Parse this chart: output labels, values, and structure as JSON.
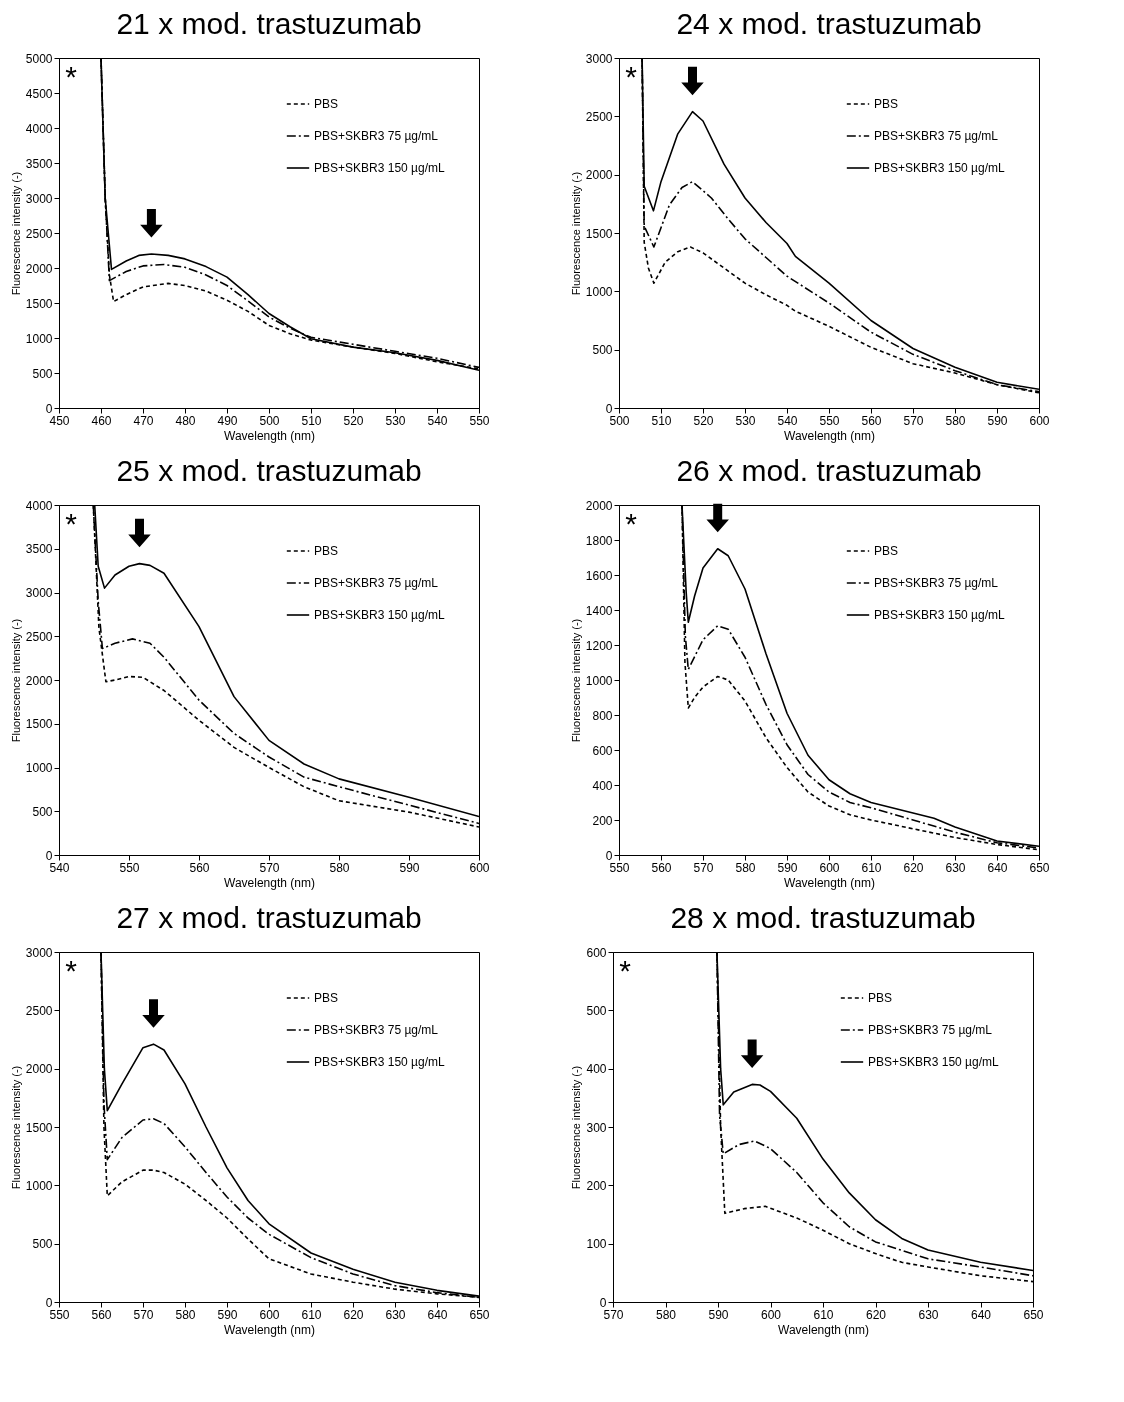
{
  "chart_data": [
    {
      "type": "line",
      "title": "21 x mod. trastuzumab",
      "xlabel": "Wavelength (nm)",
      "ylabel": "Fluorescence intensity (-)",
      "xlim": [
        450,
        550
      ],
      "xticks": [
        450,
        460,
        470,
        480,
        490,
        500,
        510,
        520,
        530,
        540,
        550
      ],
      "ylim": [
        0,
        5000
      ],
      "yticks": [
        0,
        500,
        1000,
        1500,
        2000,
        2500,
        3000,
        3500,
        4000,
        4500,
        5000
      ],
      "grid": false,
      "legend": "top right",
      "annotations": [
        "*"
      ],
      "series": [
        {
          "name": "PBS",
          "color": "#000000",
          "line_style": "dashed",
          "x": [
            460,
            461,
            462,
            463,
            466,
            470,
            476,
            480,
            485,
            490,
            495,
            500,
            505,
            510,
            520,
            530,
            540,
            550
          ],
          "values": [
            5000,
            3000,
            1900,
            1520,
            1620,
            1730,
            1780,
            1750,
            1670,
            1540,
            1380,
            1180,
            1060,
            970,
            870,
            780,
            660,
            560
          ]
        },
        {
          "name": "PBS+SKBR3 75 µg/mL",
          "color": "#000000",
          "line_style": "dashdot",
          "x": [
            460,
            461,
            462,
            466,
            470,
            475,
            480,
            485,
            490,
            495,
            500,
            505,
            510,
            520,
            530,
            540,
            550
          ],
          "values": [
            5000,
            3000,
            1820,
            1950,
            2030,
            2050,
            2010,
            1900,
            1750,
            1530,
            1300,
            1140,
            1010,
            910,
            810,
            710,
            580
          ]
        },
        {
          "name": "PBS+SKBR3 150 µg/mL",
          "color": "#000000",
          "line_style": "solid",
          "x": [
            460,
            461,
            462.5,
            466,
            469,
            472,
            476,
            480,
            485,
            490,
            495,
            500,
            505,
            510,
            520,
            530,
            540,
            550
          ],
          "values": [
            5000,
            3000,
            1980,
            2100,
            2180,
            2200,
            2180,
            2130,
            2020,
            1870,
            1620,
            1350,
            1160,
            990,
            870,
            790,
            680,
            540
          ]
        }
      ]
    },
    {
      "type": "line",
      "title": "24 x mod. trastuzumab",
      "xlabel": "Wavelength (nm)",
      "ylabel": "Fluorescence intensity (-)",
      "xlim": [
        500,
        600
      ],
      "xticks": [
        500,
        510,
        520,
        530,
        540,
        550,
        560,
        570,
        580,
        590,
        600
      ],
      "ylim": [
        0,
        3000
      ],
      "yticks": [
        0,
        500,
        1000,
        1500,
        2000,
        2500,
        3000
      ],
      "grid": false,
      "legend": "top right",
      "annotations": [
        "*"
      ],
      "series": [
        {
          "name": "PBS",
          "color": "#000000",
          "line_style": "dashed",
          "x": [
            505.5,
            506,
            507,
            508.3,
            511,
            514,
            517,
            520,
            525,
            530,
            535,
            540,
            542,
            550,
            560,
            570,
            580,
            590,
            600
          ],
          "values": [
            3000,
            1420,
            1200,
            1070,
            1250,
            1340,
            1380,
            1330,
            1200,
            1070,
            970,
            880,
            830,
            700,
            520,
            380,
            300,
            200,
            130
          ]
        },
        {
          "name": "PBS+SKBR3 75 µg/mL",
          "color": "#000000",
          "line_style": "dashdot",
          "x": [
            505.5,
            506,
            508.3,
            512,
            515,
            517.5,
            522,
            526,
            530,
            535,
            540,
            550,
            560,
            570,
            580,
            590,
            600
          ],
          "values": [
            3000,
            1560,
            1380,
            1740,
            1890,
            1940,
            1800,
            1620,
            1450,
            1290,
            1130,
            900,
            650,
            460,
            320,
            200,
            140
          ]
        },
        {
          "name": "PBS+SKBR3 150 µg/mL",
          "color": "#000000",
          "line_style": "solid",
          "x": [
            505.5,
            506,
            508.2,
            510,
            514,
            517.5,
            520,
            525,
            530,
            535,
            540,
            542,
            550,
            560,
            570,
            580,
            590,
            600
          ],
          "values": [
            3000,
            1900,
            1690,
            1940,
            2350,
            2540,
            2460,
            2090,
            1800,
            1590,
            1410,
            1300,
            1070,
            750,
            510,
            350,
            220,
            160
          ]
        }
      ]
    },
    {
      "type": "line",
      "title": "25 x mod. trastuzumab",
      "xlabel": "Wavelength (nm)",
      "ylabel": "Fluorescence intensity (-)",
      "xlim": [
        540,
        600
      ],
      "xticks": [
        540,
        550,
        560,
        570,
        580,
        590,
        600
      ],
      "ylim": [
        0,
        4000
      ],
      "yticks": [
        0,
        500,
        1000,
        1500,
        2000,
        2500,
        3000,
        3500,
        4000
      ],
      "grid": false,
      "legend": "top right",
      "annotations": [
        "*"
      ],
      "series": [
        {
          "name": "PBS",
          "color": "#000000",
          "line_style": "dashed",
          "x": [
            544.9,
            545.7,
            546.7,
            548,
            550,
            552,
            555,
            560,
            565,
            570,
            575,
            580,
            590,
            600
          ],
          "values": [
            4000,
            2600,
            1980,
            2000,
            2040,
            2030,
            1880,
            1540,
            1230,
            1000,
            780,
            620,
            490,
            320
          ]
        },
        {
          "name": "PBS+SKBR3 75 µg/mL",
          "color": "#000000",
          "line_style": "dashdot",
          "x": [
            544.9,
            545.6,
            546.2,
            548,
            550.5,
            553,
            555,
            560,
            565,
            570,
            575,
            580,
            590,
            600
          ],
          "values": [
            4000,
            2900,
            2360,
            2420,
            2470,
            2420,
            2260,
            1770,
            1390,
            1120,
            890,
            780,
            570,
            360
          ]
        },
        {
          "name": "PBS+SKBR3 150 µg/mL",
          "color": "#000000",
          "line_style": "solid",
          "x": [
            545.1,
            545.6,
            546.5,
            548,
            550,
            551.5,
            553,
            555,
            560,
            565,
            570,
            575,
            580,
            590,
            600
          ],
          "values": [
            4000,
            3300,
            3050,
            3200,
            3300,
            3330,
            3310,
            3220,
            2610,
            1810,
            1310,
            1040,
            870,
            660,
            440
          ]
        }
      ]
    },
    {
      "type": "line",
      "title": "26 x mod. trastuzumab",
      "xlabel": "Wavelength (nm)",
      "ylabel": "Fluorescence intensity (-)",
      "xlim": [
        550,
        650
      ],
      "xticks": [
        550,
        560,
        570,
        580,
        590,
        600,
        610,
        620,
        630,
        640,
        650
      ],
      "ylim": [
        0,
        2000
      ],
      "yticks": [
        0,
        200,
        400,
        600,
        800,
        1000,
        1200,
        1400,
        1600,
        1800,
        2000
      ],
      "grid": false,
      "legend": "top right",
      "annotations": [
        "*"
      ],
      "series": [
        {
          "name": "PBS",
          "color": "#000000",
          "line_style": "dashed",
          "x": [
            565,
            565.7,
            566.5,
            568,
            570,
            573.5,
            576,
            580,
            585,
            590,
            595,
            600,
            605,
            610,
            620,
            630,
            640,
            650
          ],
          "values": [
            2000,
            1100,
            840,
            900,
            960,
            1020,
            1000,
            880,
            670,
            500,
            360,
            280,
            230,
            200,
            150,
            100,
            60,
            30
          ]
        },
        {
          "name": "PBS+SKBR3 75 µg/mL",
          "color": "#000000",
          "line_style": "dashdot",
          "x": [
            565,
            565.8,
            566.5,
            570,
            573.5,
            576,
            580,
            585,
            590,
            595,
            600,
            605,
            610,
            620,
            630,
            640,
            650
          ],
          "values": [
            2000,
            1250,
            1060,
            1230,
            1310,
            1290,
            1130,
            860,
            630,
            460,
            360,
            300,
            270,
            200,
            130,
            70,
            40
          ]
        },
        {
          "name": "PBS+SKBR3 150 µg/mL",
          "color": "#000000",
          "line_style": "solid",
          "x": [
            565,
            566,
            566.5,
            568,
            570,
            573.5,
            576,
            580,
            585,
            590,
            595,
            600,
            605,
            610,
            620,
            625,
            630,
            640,
            650
          ],
          "values": [
            2000,
            1500,
            1330,
            1480,
            1640,
            1750,
            1710,
            1520,
            1150,
            810,
            570,
            430,
            350,
            300,
            240,
            210,
            160,
            80,
            50
          ]
        }
      ]
    },
    {
      "type": "line",
      "title": "27 x mod. trastuzumab",
      "xlabel": "Wavelength (nm)",
      "ylabel": "Fluorescence intensity (-)",
      "xlim": [
        550,
        650
      ],
      "xticks": [
        550,
        560,
        570,
        580,
        590,
        600,
        610,
        620,
        630,
        640,
        650
      ],
      "ylim": [
        0,
        3000
      ],
      "yticks": [
        0,
        500,
        1000,
        1500,
        2000,
        2500,
        3000
      ],
      "grid": false,
      "legend": "top right",
      "annotations": [
        "*"
      ],
      "series": [
        {
          "name": "PBS",
          "color": "#000000",
          "line_style": "dashed",
          "x": [
            560,
            560.7,
            561.5,
            565,
            570,
            572.5,
            575,
            580,
            585,
            590,
            595,
            600,
            610,
            620,
            630,
            640,
            650
          ],
          "values": [
            3000,
            1500,
            910,
            1030,
            1130,
            1130,
            1110,
            1010,
            870,
            720,
            540,
            370,
            240,
            170,
            110,
            70,
            40
          ]
        },
        {
          "name": "PBS+SKBR3 75 µg/mL",
          "color": "#000000",
          "line_style": "dashdot",
          "x": [
            560,
            560.7,
            561.5,
            565,
            570,
            572.5,
            575,
            580,
            585,
            590,
            595,
            600,
            610,
            620,
            630,
            640,
            650
          ],
          "values": [
            3000,
            1700,
            1220,
            1410,
            1560,
            1570,
            1530,
            1330,
            1110,
            900,
            720,
            580,
            380,
            240,
            140,
            80,
            40
          ]
        },
        {
          "name": "PBS+SKBR3 150 µg/mL",
          "color": "#000000",
          "line_style": "solid",
          "x": [
            560,
            560.8,
            561.5,
            565,
            570,
            572.5,
            575,
            580,
            585,
            590,
            595,
            600,
            610,
            620,
            630,
            640,
            650
          ],
          "values": [
            3000,
            2000,
            1640,
            1870,
            2180,
            2210,
            2160,
            1870,
            1500,
            1150,
            870,
            670,
            420,
            280,
            170,
            100,
            50
          ]
        }
      ]
    },
    {
      "type": "line",
      "title": "28 x mod. trastuzumab",
      "xlabel": "Wavelength (nm)",
      "ylabel": "Fluorescence intensity (-)",
      "xlim": [
        570,
        650
      ],
      "xticks": [
        570,
        580,
        590,
        600,
        610,
        620,
        630,
        640,
        650
      ],
      "ylim": [
        0,
        600
      ],
      "yticks": [
        0,
        100,
        200,
        300,
        400,
        500,
        600
      ],
      "grid": false,
      "legend": "top right",
      "annotations": [
        "*"
      ],
      "series": [
        {
          "name": "PBS",
          "color": "#000000",
          "line_style": "dashed",
          "x": [
            589.8,
            590.5,
            591.3,
            595,
            599,
            605,
            610,
            615,
            620,
            625,
            630,
            640,
            650
          ],
          "values": [
            600,
            300,
            152,
            160,
            164,
            144,
            123,
            100,
            83,
            68,
            60,
            45,
            35
          ]
        },
        {
          "name": "PBS+SKBR3 75 µg/mL",
          "color": "#000000",
          "line_style": "dashdot",
          "x": [
            589.8,
            590.3,
            591,
            594,
            597,
            600,
            605,
            610,
            615,
            620,
            630,
            640,
            650
          ],
          "values": [
            600,
            320,
            254,
            270,
            276,
            263,
            222,
            170,
            129,
            103,
            74,
            60,
            45
          ]
        },
        {
          "name": "PBS+SKBR3 150 µg/mL",
          "color": "#000000",
          "line_style": "solid",
          "x": [
            589.8,
            590.5,
            591,
            593,
            596.5,
            598,
            600,
            605,
            610,
            615,
            620,
            625,
            630,
            640,
            650
          ],
          "values": [
            600,
            400,
            338,
            360,
            373,
            372,
            361,
            315,
            245,
            187,
            141,
            109,
            89,
            68,
            54
          ]
        }
      ]
    }
  ]
}
